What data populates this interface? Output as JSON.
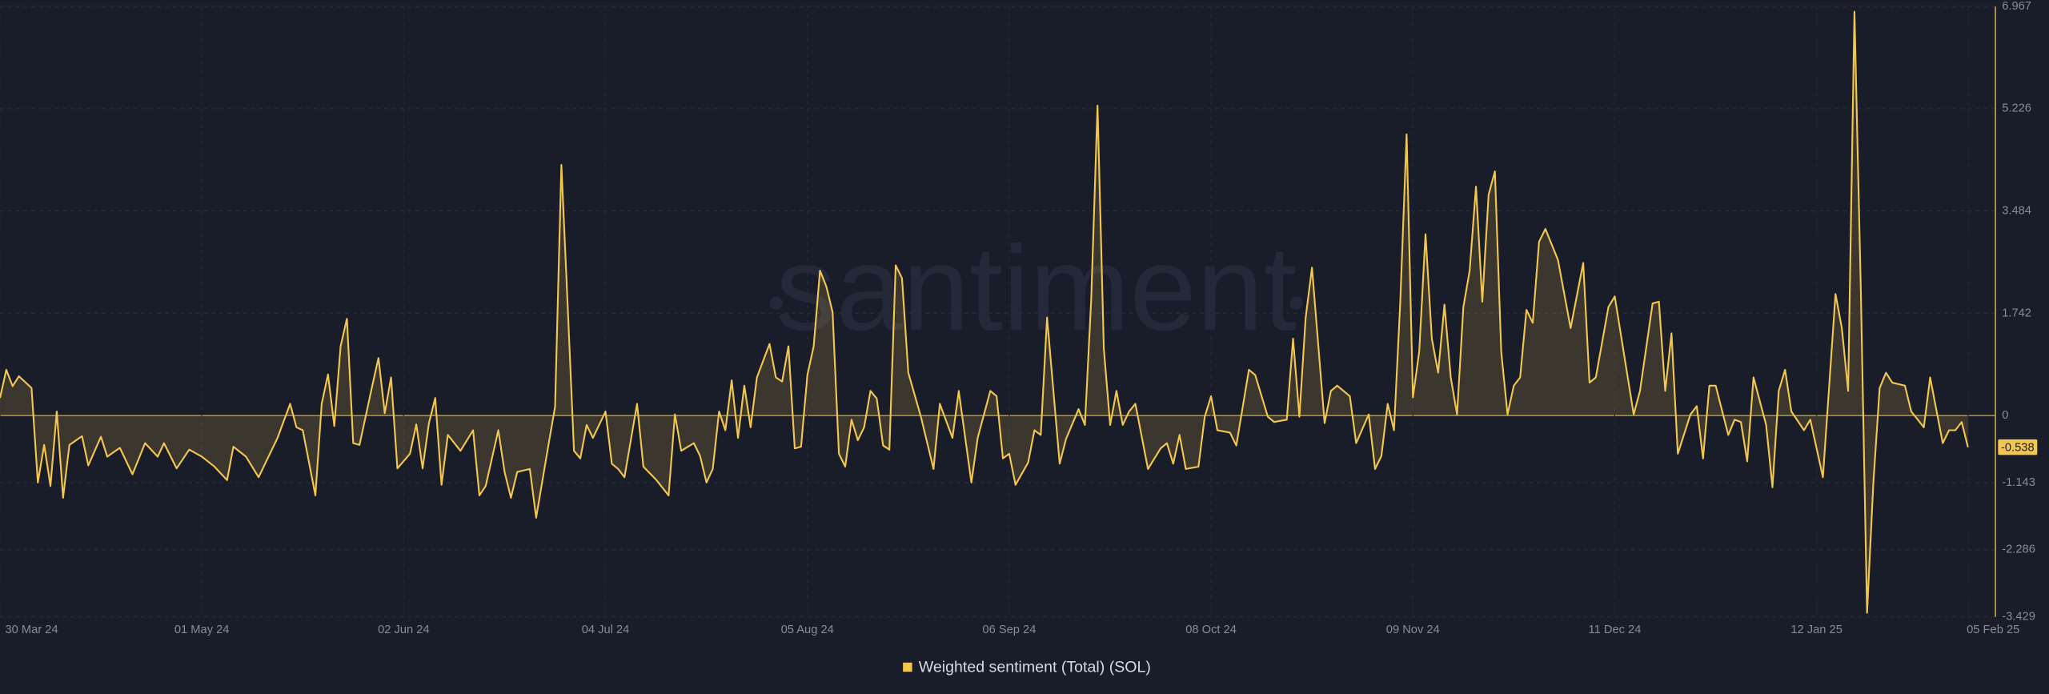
{
  "chart_data": {
    "type": "line",
    "watermark": "santiment",
    "legend": "bottom",
    "grid": true,
    "xlim": [
      "2024-03-30",
      "2025-02-05"
    ],
    "ylim": [
      -3.429,
      6.967
    ],
    "yticks": [
      6.967,
      5.226,
      3.484,
      1.742,
      0,
      -1.143,
      -2.286,
      -3.429
    ],
    "xticks": [
      {
        "value": "2024-03-30",
        "label": "30 Mar 24"
      },
      {
        "value": "2024-05-01",
        "label": "01 May 24"
      },
      {
        "value": "2024-06-02",
        "label": "02 Jun 24"
      },
      {
        "value": "2024-07-04",
        "label": "04 Jul 24"
      },
      {
        "value": "2024-08-05",
        "label": "05 Aug 24"
      },
      {
        "value": "2024-09-06",
        "label": "06 Sep 24"
      },
      {
        "value": "2024-10-08",
        "label": "08 Oct 24"
      },
      {
        "value": "2024-11-09",
        "label": "09 Nov 24"
      },
      {
        "value": "2024-12-11",
        "label": "11 Dec 24"
      },
      {
        "value": "2025-01-12",
        "label": "12 Jan 25"
      },
      {
        "value": "2025-02-05",
        "label": "05 Feb 25"
      }
    ],
    "x": [
      "2024-03-30",
      "2024-03-31",
      "2024-04-01",
      "2024-04-02",
      "2024-04-04",
      "2024-04-05",
      "2024-04-06",
      "2024-04-07",
      "2024-04-08",
      "2024-04-09",
      "2024-04-10",
      "2024-04-12",
      "2024-04-13",
      "2024-04-15",
      "2024-04-16",
      "2024-04-18",
      "2024-04-20",
      "2024-04-22",
      "2024-04-24",
      "2024-04-25",
      "2024-04-27",
      "2024-04-29",
      "2024-05-01",
      "2024-05-03",
      "2024-05-05",
      "2024-05-06",
      "2024-05-08",
      "2024-05-10",
      "2024-05-13",
      "2024-05-15",
      "2024-05-16",
      "2024-05-17",
      "2024-05-19",
      "2024-05-20",
      "2024-05-21",
      "2024-05-22",
      "2024-05-23",
      "2024-05-24",
      "2024-05-25",
      "2024-05-26",
      "2024-05-28",
      "2024-05-29",
      "2024-05-30",
      "2024-05-31",
      "2024-06-01",
      "2024-06-03",
      "2024-06-04",
      "2024-06-05",
      "2024-06-06",
      "2024-06-07",
      "2024-06-08",
      "2024-06-09",
      "2024-06-11",
      "2024-06-13",
      "2024-06-14",
      "2024-06-15",
      "2024-06-17",
      "2024-06-18",
      "2024-06-19",
      "2024-06-20",
      "2024-06-22",
      "2024-06-23",
      "2024-06-25",
      "2024-06-26",
      "2024-06-27",
      "2024-06-28",
      "2024-06-29",
      "2024-06-30",
      "2024-07-01",
      "2024-07-02",
      "2024-07-04",
      "2024-07-05",
      "2024-07-06",
      "2024-07-07",
      "2024-07-09",
      "2024-07-10",
      "2024-07-12",
      "2024-07-14",
      "2024-07-15",
      "2024-07-16",
      "2024-07-18",
      "2024-07-19",
      "2024-07-20",
      "2024-07-21",
      "2024-07-22",
      "2024-07-23",
      "2024-07-24",
      "2024-07-25",
      "2024-07-26",
      "2024-07-27",
      "2024-07-28",
      "2024-07-30",
      "2024-07-31",
      "2024-08-01",
      "2024-08-02",
      "2024-08-03",
      "2024-08-04",
      "2024-08-05",
      "2024-08-06",
      "2024-08-07",
      "2024-08-08",
      "2024-08-09",
      "2024-08-10",
      "2024-08-11",
      "2024-08-12",
      "2024-08-13",
      "2024-08-14",
      "2024-08-15",
      "2024-08-16",
      "2024-08-17",
      "2024-08-18",
      "2024-08-19",
      "2024-08-20",
      "2024-08-21",
      "2024-08-23",
      "2024-08-25",
      "2024-08-26",
      "2024-08-28",
      "2024-08-29",
      "2024-08-31",
      "2024-09-01",
      "2024-09-03",
      "2024-09-04",
      "2024-09-05",
      "2024-09-06",
      "2024-09-07",
      "2024-09-09",
      "2024-09-10",
      "2024-09-11",
      "2024-09-12",
      "2024-09-14",
      "2024-09-15",
      "2024-09-17",
      "2024-09-18",
      "2024-09-19",
      "2024-09-20",
      "2024-09-21",
      "2024-09-22",
      "2024-09-23",
      "2024-09-24",
      "2024-09-25",
      "2024-09-26",
      "2024-09-28",
      "2024-09-30",
      "2024-10-01",
      "2024-10-02",
      "2024-10-03",
      "2024-10-04",
      "2024-10-06",
      "2024-10-07",
      "2024-10-08",
      "2024-10-09",
      "2024-10-11",
      "2024-10-12",
      "2024-10-14",
      "2024-10-15",
      "2024-10-17",
      "2024-10-18",
      "2024-10-20",
      "2024-10-21",
      "2024-10-22",
      "2024-10-23",
      "2024-10-24",
      "2024-10-26",
      "2024-10-27",
      "2024-10-28",
      "2024-10-30",
      "2024-10-31",
      "2024-11-02",
      "2024-11-03",
      "2024-11-04",
      "2024-11-05",
      "2024-11-06",
      "2024-11-07",
      "2024-11-08",
      "2024-11-09",
      "2024-11-10",
      "2024-11-11",
      "2024-11-12",
      "2024-11-13",
      "2024-11-14",
      "2024-11-15",
      "2024-11-16",
      "2024-11-17",
      "2024-11-18",
      "2024-11-19",
      "2024-11-20",
      "2024-11-21",
      "2024-11-22",
      "2024-11-23",
      "2024-11-24",
      "2024-11-25",
      "2024-11-26",
      "2024-11-27",
      "2024-11-28",
      "2024-11-29",
      "2024-11-30",
      "2024-12-02",
      "2024-12-04",
      "2024-12-06",
      "2024-12-07",
      "2024-12-08",
      "2024-12-10",
      "2024-12-11",
      "2024-12-12",
      "2024-12-14",
      "2024-12-15",
      "2024-12-17",
      "2024-12-18",
      "2024-12-19",
      "2024-12-20",
      "2024-12-21",
      "2024-12-23",
      "2024-12-24",
      "2024-12-25",
      "2024-12-26",
      "2024-12-27",
      "2024-12-29",
      "2024-12-30",
      "2024-12-31",
      "2025-01-01",
      "2025-01-02",
      "2025-01-04",
      "2025-01-05",
      "2025-01-06",
      "2025-01-07",
      "2025-01-08",
      "2025-01-10",
      "2025-01-11",
      "2025-01-13",
      "2025-01-15",
      "2025-01-16",
      "2025-01-17",
      "2025-01-18",
      "2025-01-19",
      "2025-01-20",
      "2025-01-21",
      "2025-01-22",
      "2025-01-23",
      "2025-01-24",
      "2025-01-26",
      "2025-01-27",
      "2025-01-29",
      "2025-01-30",
      "2025-02-01",
      "2025-02-02",
      "2025-02-03",
      "2025-02-04",
      "2025-02-05"
    ],
    "series": [
      {
        "name": "Weighted sentiment (Total) (SOL)",
        "color": "#f3c74f",
        "values": [
          0.3,
          0.78,
          0.5,
          0.67,
          0.47,
          -1.14,
          -0.5,
          -1.2,
          0.07,
          -1.4,
          -0.5,
          -0.35,
          -0.85,
          -0.36,
          -0.7,
          -0.55,
          -1.0,
          -0.47,
          -0.7,
          -0.47,
          -0.9,
          -0.58,
          -0.7,
          -0.87,
          -1.1,
          -0.53,
          -0.7,
          -1.05,
          -0.38,
          0.2,
          -0.2,
          -0.25,
          -1.36,
          0.2,
          0.7,
          -0.18,
          1.18,
          1.65,
          -0.47,
          -0.5,
          0.5,
          0.98,
          0.04,
          0.65,
          -0.9,
          -0.65,
          -0.15,
          -0.9,
          -0.13,
          0.3,
          -1.18,
          -0.33,
          -0.6,
          -0.25,
          -1.36,
          -1.2,
          -0.25,
          -0.96,
          -1.4,
          -0.96,
          -0.91,
          -1.74,
          -0.47,
          0.15,
          4.27,
          1.87,
          -0.6,
          -0.73,
          -0.16,
          -0.38,
          0.07,
          -0.82,
          -0.91,
          -1.05,
          0.2,
          -0.87,
          -1.09,
          -1.36,
          0.02,
          -0.6,
          -0.47,
          -0.69,
          -1.14,
          -0.91,
          0.07,
          -0.25,
          0.6,
          -0.38,
          0.51,
          -0.2,
          0.65,
          1.22,
          0.65,
          0.58,
          1.18,
          -0.56,
          -0.53,
          0.69,
          1.18,
          2.47,
          2.2,
          1.76,
          -0.65,
          -0.87,
          -0.07,
          -0.42,
          -0.2,
          0.42,
          0.29,
          -0.51,
          -0.58,
          2.56,
          2.34,
          0.73,
          -0.02,
          -0.91,
          0.2,
          -0.38,
          0.42,
          -1.14,
          -0.38,
          0.42,
          0.33,
          -0.73,
          -0.65,
          -1.18,
          -0.8,
          -0.25,
          -0.33,
          1.67,
          -0.82,
          -0.4,
          0.11,
          -0.16,
          1.98,
          5.28,
          1.14,
          -0.16,
          0.42,
          -0.16,
          0.07,
          0.2,
          -0.91,
          -0.56,
          -0.47,
          -0.82,
          -0.33,
          -0.91,
          -0.87,
          -0.02,
          0.33,
          -0.25,
          -0.29,
          -0.51,
          0.78,
          0.69,
          -0.02,
          -0.11,
          -0.07,
          1.31,
          -0.02,
          1.67,
          2.52,
          -0.13,
          0.42,
          0.51,
          0.33,
          -0.47,
          0.02,
          -0.91,
          -0.69,
          0.2,
          -0.25,
          1.94,
          4.79,
          0.31,
          1.09,
          3.09,
          1.31,
          0.73,
          1.89,
          0.65,
          0.02,
          1.85,
          2.47,
          3.9,
          1.94,
          3.76,
          4.16,
          1.09,
          0.02,
          0.51,
          0.65,
          1.8,
          1.58,
          2.96,
          3.18,
          2.65,
          1.49,
          2.6,
          0.56,
          0.65,
          1.85,
          2.03,
          1.36,
          0.02,
          0.42,
          1.91,
          1.94,
          0.42,
          1.4,
          -0.65,
          0.02,
          0.16,
          -0.73,
          0.51,
          0.51,
          -0.33,
          -0.07,
          -0.11,
          -0.78,
          0.65,
          -0.16,
          -1.22,
          0.42,
          0.78,
          0.07,
          -0.25,
          -0.07,
          -1.05,
          2.07,
          1.49,
          0.42,
          6.88,
          2.2,
          -3.36,
          -1.14,
          0.47,
          0.73,
          0.56,
          0.51,
          0.07,
          -0.2,
          0.65,
          -0.47,
          -0.25,
          -0.25,
          -0.11,
          -0.538
        ]
      }
    ]
  }
}
